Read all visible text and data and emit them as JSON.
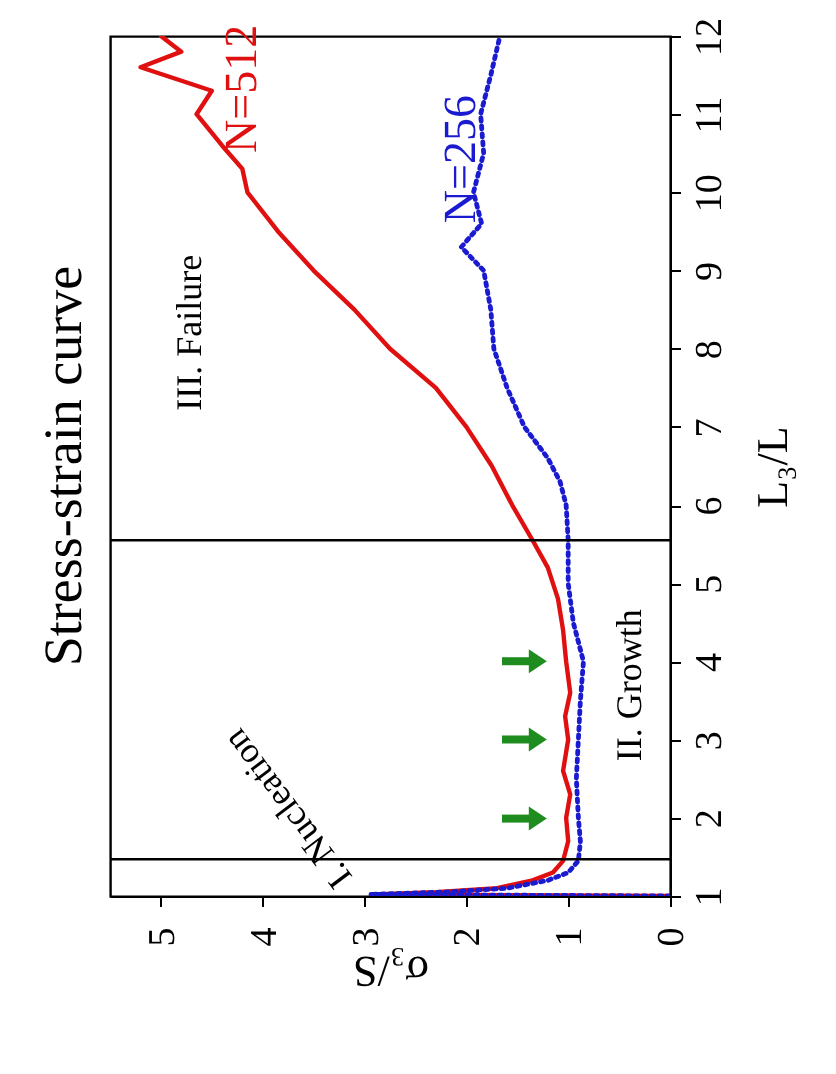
{
  "chart_data": {
    "type": "line",
    "title": "Stress-strain curve",
    "xlabel": "σ₃/S",
    "ylabel": "L₃/L",
    "xlim": [
      5.5,
      0
    ],
    "xticks": [
      5,
      4,
      3,
      2,
      1,
      0
    ],
    "ylim": [
      1,
      12
    ],
    "yticks": [
      1,
      2,
      3,
      4,
      5,
      6,
      7,
      8,
      9,
      10,
      11,
      12
    ],
    "grid": false,
    "legend": false,
    "series": [
      {
        "name": "N=512",
        "color": "#e01010",
        "line_style": "solid",
        "x": [
          0,
          2.9,
          2.3,
          1.7,
          1.35,
          1.15,
          1.05,
          1.0,
          1.02,
          0.98,
          1.05,
          1.0,
          1.03,
          0.98,
          1.02,
          1.05,
          1.1,
          1.2,
          1.35,
          1.55,
          1.75,
          2.0,
          2.3,
          2.75,
          3.1,
          3.5,
          3.85,
          4.15,
          4.2,
          4.4,
          4.65,
          4.5,
          5.2,
          4.8,
          5.0
        ],
        "values": [
          1,
          1.02,
          1.05,
          1.1,
          1.2,
          1.3,
          1.45,
          1.7,
          2,
          2.3,
          2.6,
          3,
          3.3,
          3.6,
          4,
          4.4,
          4.8,
          5.2,
          5.55,
          6,
          6.5,
          7,
          7.5,
          8,
          8.5,
          9,
          9.5,
          10,
          10.3,
          10.6,
          11,
          11.3,
          11.6,
          11.8,
          12
        ]
      },
      {
        "name": "N=256",
        "color": "#1a1ad0",
        "line_style": "dotted",
        "x": [
          0,
          2.95,
          2.2,
          1.6,
          1.2,
          1.0,
          0.9,
          0.88,
          0.9,
          0.92,
          0.9,
          0.88,
          0.85,
          0.95,
          1.0,
          1.0,
          1.02,
          1.08,
          1.2,
          1.43,
          1.6,
          1.73,
          1.76,
          1.83,
          2.05,
          1.85,
          1.93,
          1.83,
          1.86,
          1.76,
          1.67
        ],
        "values": [
          1,
          1.02,
          1.05,
          1.1,
          1.2,
          1.3,
          1.45,
          1.7,
          2,
          2.5,
          3,
          3.5,
          4,
          4.5,
          5,
          5.55,
          6,
          6.3,
          6.6,
          7,
          7.5,
          8,
          8.5,
          9,
          9.3,
          9.6,
          10,
          10.5,
          11,
          11.5,
          12
        ]
      }
    ],
    "ref_lines": [
      {
        "axis": "y",
        "value": 1.47,
        "color": "#000000"
      },
      {
        "axis": "y",
        "value": 5.55,
        "color": "#000000"
      }
    ],
    "annotations": [
      "I. Nucleation",
      "II. Growth",
      "III. Failure"
    ]
  }
}
